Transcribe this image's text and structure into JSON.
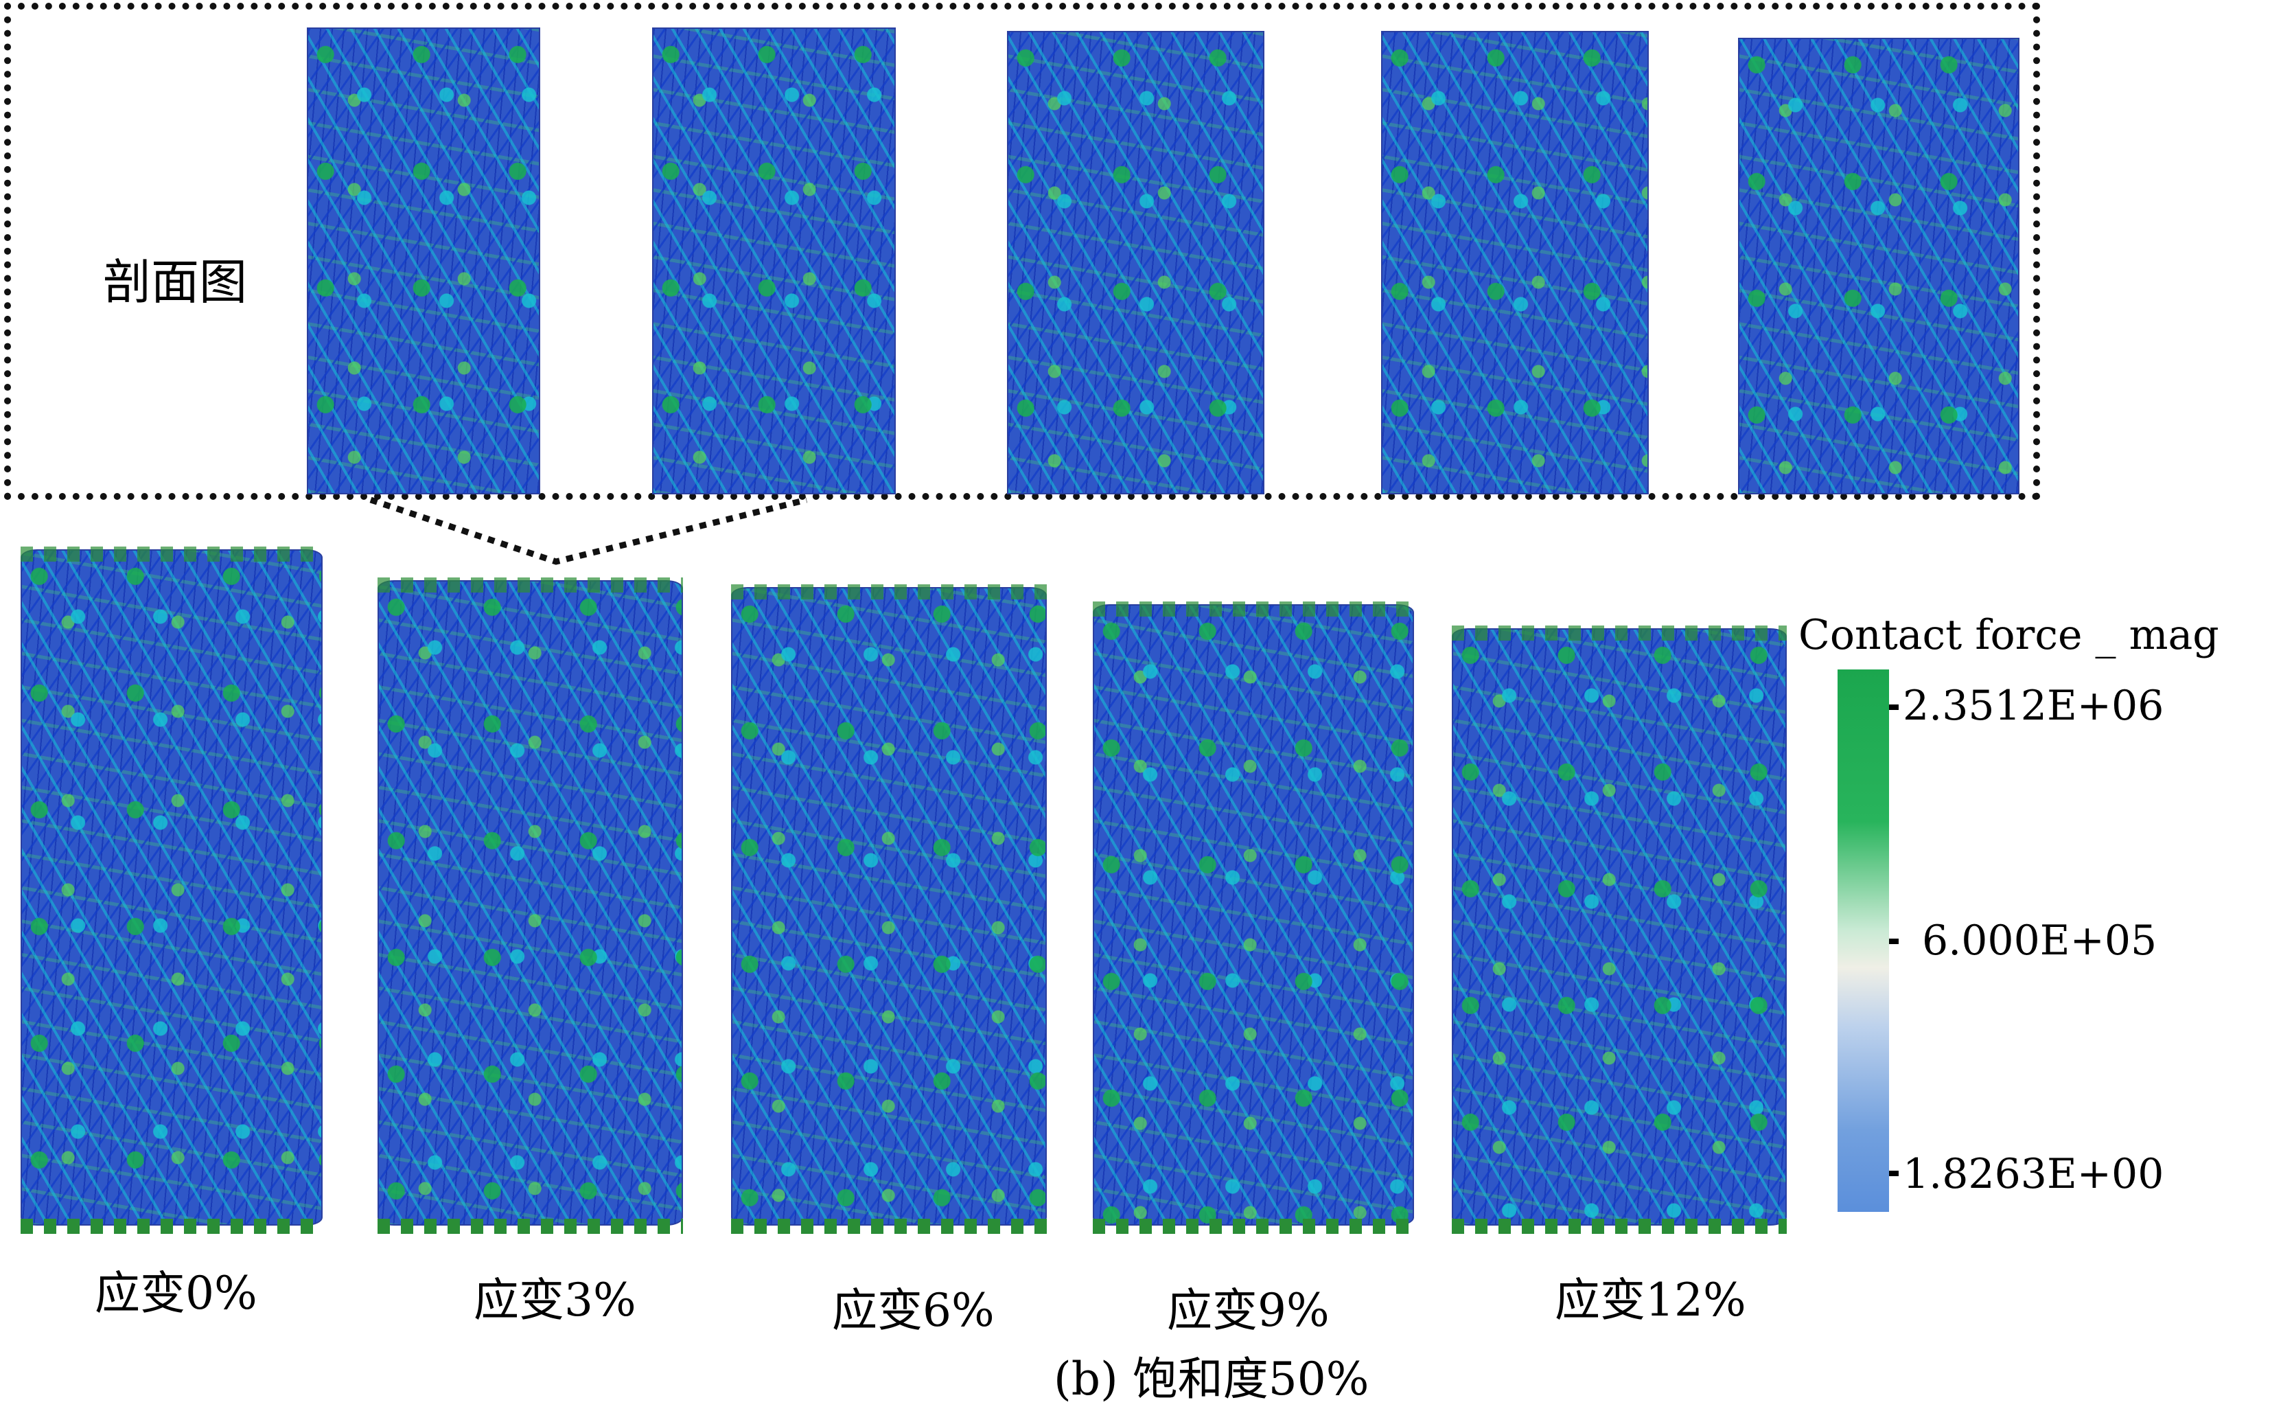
{
  "inset": {
    "label": "剖面图"
  },
  "strain_labels": [
    "应变0%",
    "应变3%",
    "应变6%",
    "应变9%",
    "应变12%"
  ],
  "caption": "(b) 饱和度50%",
  "legend": {
    "title": "Contact force _ mag",
    "ticks": [
      "2.3512E+06",
      "6.000E+05",
      "1.8263E+00"
    ],
    "colors": {
      "high": "#1ba64e",
      "mid": "#efefe6",
      "low": "#5b8fdb"
    }
  }
}
